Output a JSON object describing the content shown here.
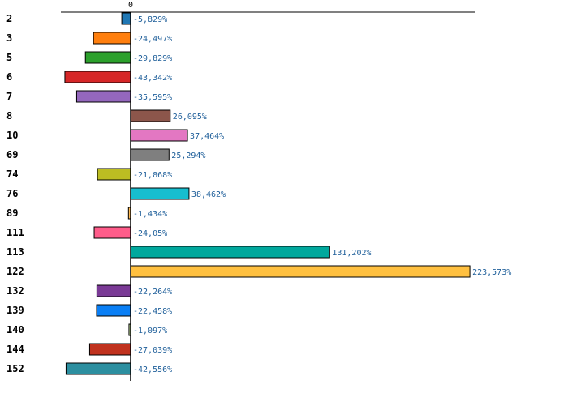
{
  "chart_data": {
    "type": "bar",
    "orientation": "horizontal",
    "title": "",
    "xlabel": "",
    "ylabel": "",
    "xlim": [
      -50,
      260
    ],
    "x_ticks": [
      0
    ],
    "grid": false,
    "legend": "none",
    "categories": [
      "2",
      "3",
      "5",
      "6",
      "7",
      "8",
      "10",
      "69",
      "74",
      "76",
      "89",
      "111",
      "113",
      "122",
      "132",
      "139",
      "140",
      "144",
      "152"
    ],
    "values": [
      -5.829,
      -24.497,
      -29.829,
      -43.342,
      -35.595,
      26.095,
      37.464,
      25.294,
      -21.868,
      38.462,
      -1.434,
      -24.05,
      131.202,
      223.573,
      -22.264,
      -22.458,
      -1.097,
      -27.039,
      -42.556
    ],
    "value_labels": [
      "-5,829%",
      "-24,497%",
      "-29,829%",
      "-43,342%",
      "-35,595%",
      "26,095%",
      "37,464%",
      "25,294%",
      "-21,868%",
      "38,462%",
      "-1,434%",
      "-24,05%",
      "131,202%",
      "223,573%",
      "-22,264%",
      "-22,458%",
      "-1,097%",
      "-27,039%",
      "-42,556%"
    ],
    "colors": [
      "#1f77b4",
      "#ff7f0e",
      "#2ca02c",
      "#d62728",
      "#9467bd",
      "#8c564b",
      "#e377c2",
      "#7f7f7f",
      "#bcbd22",
      "#17becf",
      "#ffbb55",
      "#ff5c8a",
      "#00a89d",
      "#ffc040",
      "#7a3a96",
      "#0a7ff5",
      "#c8e6a0",
      "#c0321e",
      "#2c8fa0"
    ]
  }
}
